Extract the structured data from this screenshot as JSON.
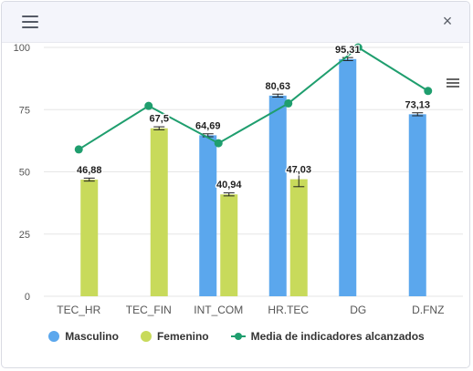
{
  "header": {
    "menu_icon": "hamburger-menu-icon",
    "close_label": "×",
    "close_icon": "close-icon"
  },
  "toolbar": {
    "export_icon": "chart-export-menu-icon"
  },
  "colors": {
    "masculino": "#5ba7ed",
    "femenino": "#c8da5b",
    "media": "#1f9e6e",
    "grid": "#e6e6e6",
    "axis_text": "#555555"
  },
  "chart_data": {
    "type": "bar",
    "categories": [
      "TEC_HR",
      "TEC_FIN",
      "INT_COM",
      "HR.TEC",
      "DG",
      "D.FNZ"
    ],
    "ylim": [
      0,
      100
    ],
    "yticks": [
      0,
      25,
      50,
      75,
      100
    ],
    "grid": true,
    "legend_position": "bottom",
    "series": [
      {
        "name": "Masculino",
        "type": "bar",
        "values": [
          null,
          null,
          64.69,
          80.63,
          95.31,
          73.13
        ],
        "labels": [
          "",
          "",
          "64,69",
          "80,63",
          "95,31",
          "73,13"
        ]
      },
      {
        "name": "Femenino",
        "type": "bar",
        "values": [
          46.88,
          67.5,
          40.94,
          47.03,
          null,
          null
        ],
        "labels": [
          "46,88",
          "67,5",
          "40,94",
          "47,03",
          "",
          ""
        ]
      },
      {
        "name": "Media de indicadores alcanzados",
        "type": "line",
        "values": [
          59,
          76.5,
          61.5,
          77.5,
          100,
          82.5
        ]
      }
    ]
  }
}
